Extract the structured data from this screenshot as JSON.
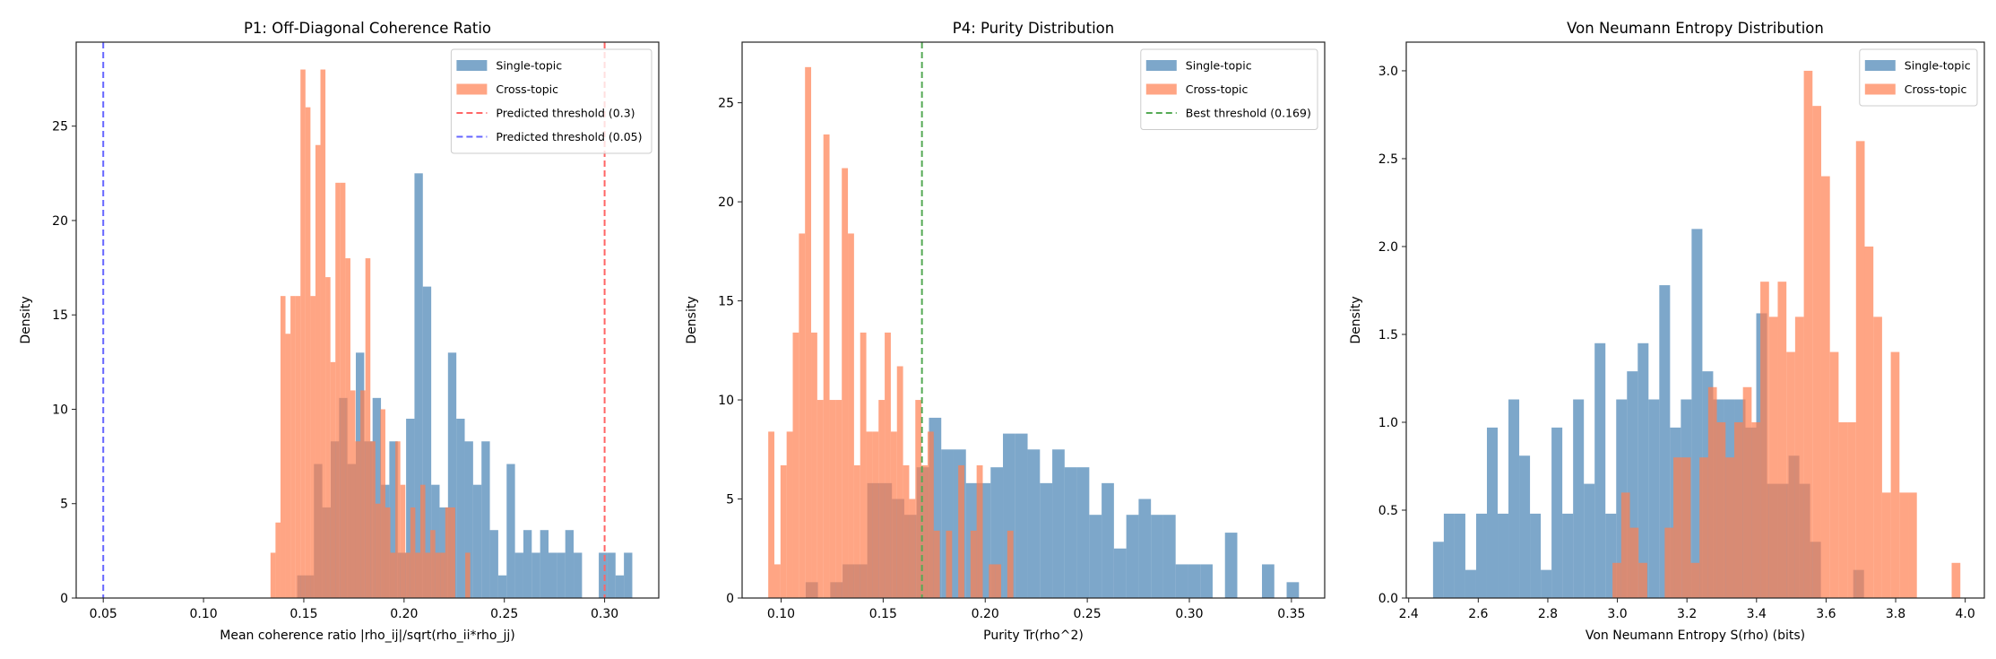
{
  "colors": {
    "single": "#4682b4",
    "cross": "#ff7f50",
    "threshold_red": "#ff6666",
    "threshold_blue": "#6666ff",
    "threshold_green": "#55aa55"
  },
  "chart_data": [
    {
      "type": "histogram",
      "title": "P1: Off-Diagonal Coherence Ratio",
      "xlabel": "Mean coherence ratio |rho_ij|/sqrt(rho_ii*rho_jj)",
      "ylabel": "Density",
      "xlim": [
        0.0365,
        0.327
      ],
      "ylim": [
        0,
        29.45
      ],
      "xticks": [
        "0.05",
        "0.10",
        "0.15",
        "0.20",
        "0.25",
        "0.30"
      ],
      "yticks": [
        "0",
        "5",
        "10",
        "15",
        "20",
        "25"
      ],
      "legend_position": "top-right",
      "series": [
        {
          "name": "Single-topic",
          "color_key": "single",
          "bin_start": 0.1467,
          "bin_end": 0.3138,
          "values": [
            1.2,
            1.2,
            7.1,
            4.8,
            8.3,
            10.6,
            7.1,
            13,
            8.3,
            10.6,
            6.0,
            8.3,
            2.4,
            9.5,
            22.5,
            16.5,
            6.0,
            4.8,
            13,
            9.5,
            8.3,
            6.0,
            8.3,
            3.6,
            1.2,
            7.1,
            2.4,
            3.6,
            2.4,
            3.6,
            2.4,
            2.4,
            3.6,
            2.4,
            0,
            0,
            2.4,
            2.4,
            1.2,
            2.4
          ]
        },
        {
          "name": "Cross-topic",
          "color_key": "cross",
          "bin_start": 0.1334,
          "bin_end": 0.233,
          "values": [
            2.4,
            4.0,
            16,
            14,
            16,
            16,
            28,
            26,
            16,
            24,
            28,
            17,
            12.5,
            22,
            22,
            18,
            11,
            8.3,
            11,
            18,
            8.3,
            5,
            10,
            4.8,
            2.4,
            8.3,
            6,
            2.4,
            4.8,
            2.4,
            6,
            2.4,
            3.6,
            2.4,
            2.4,
            4.8,
            4.8,
            0,
            0,
            2.4
          ]
        }
      ],
      "thresholds": [
        {
          "label": "Predicted threshold (0.3)",
          "value": 0.3,
          "color_key": "threshold_red"
        },
        {
          "label": "Predicted threshold (0.05)",
          "value": 0.05,
          "color_key": "threshold_blue"
        }
      ]
    },
    {
      "type": "histogram",
      "title": "P4: Purity Distribution",
      "xlabel": "Purity Tr(rho^2)",
      "ylabel": "Density",
      "xlim": [
        0.0809,
        0.3663
      ],
      "ylim": [
        0,
        28.06
      ],
      "xticks": [
        "0.10",
        "0.15",
        "0.20",
        "0.25",
        "0.30",
        "0.35"
      ],
      "yticks": [
        "0",
        "5",
        "10",
        "15",
        "20",
        "25"
      ],
      "legend_position": "top-right",
      "series": [
        {
          "name": "Single-topic",
          "color_key": "single",
          "bin_start": 0.112,
          "bin_end": 0.3537,
          "values": [
            0.8,
            0,
            0.8,
            1.7,
            1.7,
            5.8,
            5.8,
            5,
            4.2,
            6.6,
            9.1,
            7.5,
            7.5,
            5.8,
            5.8,
            6.6,
            8.3,
            8.3,
            7.5,
            5.8,
            7.5,
            6.6,
            6.6,
            4.2,
            5.8,
            2.5,
            4.2,
            5.0,
            4.2,
            4.2,
            1.7,
            1.7,
            1.7,
            0,
            3.3,
            0,
            0,
            1.7,
            0,
            0.8
          ]
        },
        {
          "name": "Cross-topic",
          "color_key": "cross",
          "bin_start": 0.0937,
          "bin_end": 0.2138,
          "values": [
            8.4,
            1.7,
            6.7,
            8.4,
            13.4,
            18.4,
            26.8,
            13.4,
            10,
            23.4,
            10,
            10,
            21.7,
            18.4,
            6.7,
            13.4,
            8.4,
            8.4,
            10,
            13.4,
            8.4,
            11.7,
            6.7,
            5,
            10,
            6.7,
            8.4,
            3.4,
            0,
            3.4,
            0,
            6.7,
            0,
            3.4,
            6.7,
            0,
            1.7,
            1.7,
            0,
            3.4
          ]
        }
      ],
      "thresholds": [
        {
          "label": "Best threshold (0.169)",
          "value": 0.169,
          "color_key": "threshold_green"
        }
      ]
    },
    {
      "type": "histogram",
      "title": "Von Neumann Entropy Distribution",
      "xlabel": "Von Neumann Entropy S(rho) (bits)",
      "ylabel": "Density",
      "xlim": [
        2.393,
        4.055
      ],
      "ylim": [
        0,
        3.163
      ],
      "xticks": [
        "2.4",
        "2.6",
        "2.8",
        "3.0",
        "3.2",
        "3.4",
        "3.6",
        "3.8",
        "4.0"
      ],
      "yticks": [
        "0.0",
        "0.5",
        "1.0",
        "1.5",
        "2.0",
        "2.5",
        "3.0"
      ],
      "legend_position": "top-right",
      "series": [
        {
          "name": "Single-topic",
          "color_key": "single",
          "bin_start": 2.47,
          "bin_end": 3.709,
          "values": [
            0.32,
            0.48,
            0.48,
            0.16,
            0.48,
            0.97,
            0.48,
            1.13,
            0.81,
            0.48,
            0.16,
            0.97,
            0.48,
            1.13,
            0.65,
            1.45,
            0.48,
            1.13,
            1.29,
            1.45,
            1.13,
            1.78,
            0.97,
            1.13,
            2.1,
            1.29,
            1.13,
            1.13,
            1.13,
            0.97,
            1.62,
            0.65,
            0.65,
            0.81,
            0.65,
            0.32,
            0,
            0,
            0,
            0.16
          ]
        },
        {
          "name": "Cross-topic",
          "color_key": "cross",
          "bin_start": 2.986,
          "bin_end": 3.986,
          "values": [
            0.2,
            0.6,
            0.4,
            0.2,
            0,
            0,
            0.4,
            0.8,
            0.8,
            0.2,
            0.8,
            1.2,
            1.0,
            0.8,
            1.0,
            1.2,
            1.0,
            1.8,
            1.6,
            1.8,
            1.4,
            1.6,
            3.0,
            2.8,
            2.4,
            1.4,
            1.0,
            1.0,
            2.6,
            2.0,
            1.6,
            0.6,
            1.4,
            0.6,
            0.6,
            0,
            0,
            0,
            0,
            0.2
          ]
        }
      ],
      "thresholds": []
    }
  ]
}
